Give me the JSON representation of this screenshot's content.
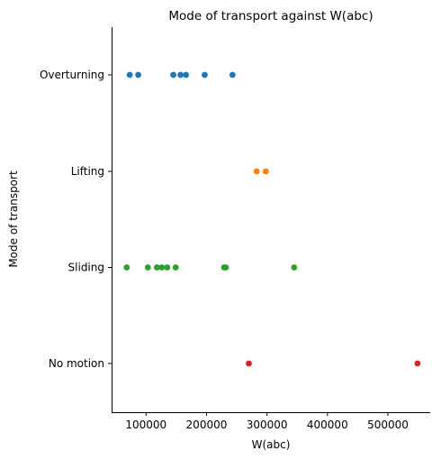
{
  "chart_data": {
    "type": "scatter",
    "title": "Mode of transport against W(abc)",
    "xlabel": "W(abc)",
    "ylabel": "Mode of transport",
    "xlim": [
      43000,
      570000
    ],
    "xticks": [
      100000,
      200000,
      300000,
      400000,
      500000
    ],
    "xtick_labels": [
      "100000",
      "200000",
      "300000",
      "400000",
      "500000"
    ],
    "categories": [
      "Overturning",
      "Lifting",
      "Sliding",
      "No motion"
    ],
    "grid": false,
    "legend": "none",
    "series": [
      {
        "category": "Overturning",
        "color": "#1f77b4",
        "x": [
          73000,
          87000,
          145000,
          157000,
          166000,
          197000,
          243000
        ]
      },
      {
        "category": "Lifting",
        "color": "#ff7f0e",
        "x": [
          283000,
          298000
        ]
      },
      {
        "category": "Sliding",
        "color": "#2ca02c",
        "x": [
          68000,
          103000,
          118000,
          126000,
          135000,
          149000,
          229000,
          232000,
          345000
        ]
      },
      {
        "category": "No motion",
        "color": "#d62728",
        "x": [
          270000,
          549000
        ]
      }
    ]
  }
}
